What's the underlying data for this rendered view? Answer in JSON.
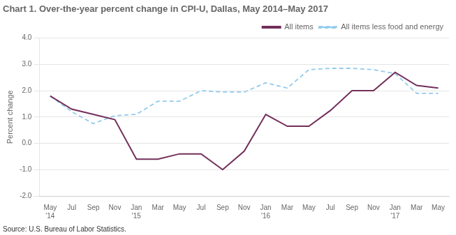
{
  "chart_data": {
    "type": "line",
    "title": "Chart 1. Over-the-year percent change in CPI-U, Dallas, May 2014–May 2017",
    "y_label": "Percent change",
    "annotations": [
      "Source: U.S. Bureau of Labor Statistics."
    ],
    "categories": [
      "May\n'14",
      "Jul",
      "Sep",
      "Nov",
      "Jan\n'15",
      "Mar",
      "May",
      "Jul",
      "Sep",
      "Nov",
      "Jan\n'16",
      "Mar",
      "May",
      "Jul",
      "Sep",
      "Nov",
      "Jan\n'17",
      "Mar",
      "May"
    ],
    "series": [
      {
        "name": "All items",
        "color": "#722F5A",
        "line_style": "solid",
        "marker": "none",
        "values": [
          1.8,
          1.3,
          1.1,
          0.9,
          -0.6,
          -0.6,
          -0.4,
          -0.4,
          -1.0,
          -0.3,
          1.1,
          0.65,
          0.65,
          1.25,
          2.0,
          2.0,
          2.7,
          2.2,
          2.1
        ]
      },
      {
        "name": "All items less food and energy",
        "color": "#92CAED",
        "line_style": "dashed",
        "marker": "none",
        "values": [
          1.8,
          1.2,
          0.75,
          1.05,
          1.1,
          1.6,
          1.6,
          2.0,
          1.95,
          1.95,
          2.3,
          2.1,
          2.8,
          2.85,
          2.85,
          2.8,
          2.65,
          1.9,
          1.9
        ]
      }
    ],
    "ylim": [
      -2.0,
      4.0
    ],
    "yticks": [
      {
        "value": -2,
        "label": "-2.0"
      },
      {
        "value": -1,
        "label": "-1.0"
      },
      {
        "value": 0,
        "label": "0.0"
      },
      {
        "value": 1,
        "label": "1.0"
      },
      {
        "value": 2,
        "label": "2.0"
      },
      {
        "value": 3,
        "label": "3.0"
      },
      {
        "value": 4,
        "label": "4.0"
      }
    ],
    "grid": true,
    "legend": "upper right"
  }
}
